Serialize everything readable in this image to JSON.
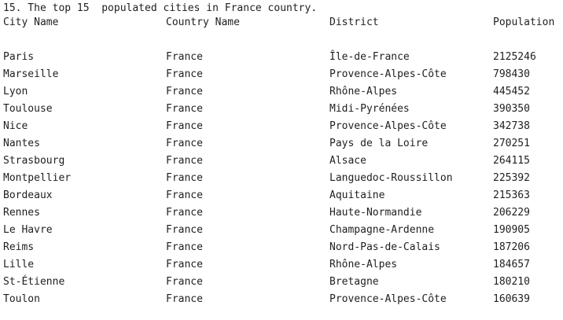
{
  "console": {
    "title": "15. The top 15  populated cities in France country.",
    "headers": [
      "City Name",
      "Country Name",
      "District",
      "Population"
    ],
    "rows": [
      [
        "Paris",
        "France",
        "Île-de-France",
        "2125246"
      ],
      [
        "Marseille",
        "France",
        "Provence-Alpes-Côte",
        "798430"
      ],
      [
        "Lyon",
        "France",
        "Rhône-Alpes",
        "445452"
      ],
      [
        "Toulouse",
        "France",
        "Midi-Pyrénées",
        "390350"
      ],
      [
        "Nice",
        "France",
        "Provence-Alpes-Côte",
        "342738"
      ],
      [
        "Nantes",
        "France",
        "Pays de la Loire",
        "270251"
      ],
      [
        "Strasbourg",
        "France",
        "Alsace",
        "264115"
      ],
      [
        "Montpellier",
        "France",
        "Languedoc-Roussillon",
        "225392"
      ],
      [
        "Bordeaux",
        "France",
        "Aquitaine",
        "215363"
      ],
      [
        "Rennes",
        "France",
        "Haute-Normandie",
        "206229"
      ],
      [
        "Le Havre",
        "France",
        "Champagne-Ardenne",
        "190905"
      ],
      [
        "Reims",
        "France",
        "Nord-Pas-de-Calais",
        "187206"
      ],
      [
        "Lille",
        "France",
        "Rhône-Alpes",
        "184657"
      ],
      [
        "St-Étienne",
        "France",
        "Bretagne",
        "180210"
      ],
      [
        "Toulon",
        "France",
        "Provence-Alpes-Côte",
        "160639"
      ]
    ]
  }
}
